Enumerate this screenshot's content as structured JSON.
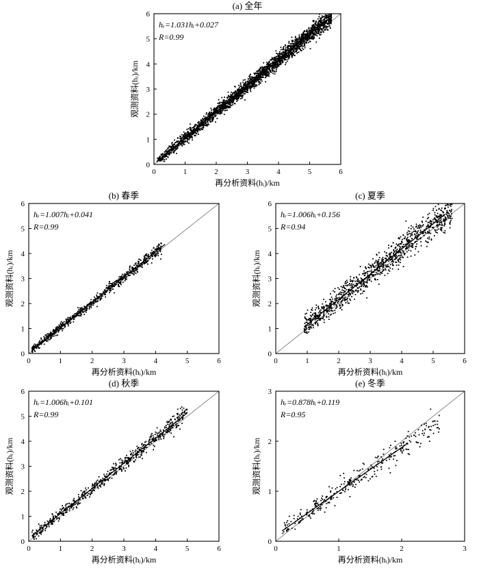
{
  "figure": {
    "xlabel": "再分析资料(hᵢ)/km",
    "ylabel": "观测资料(hᵣ)/km"
  },
  "chart_data": [
    {
      "id": "a",
      "type": "scatter",
      "title": "(a) 全年",
      "xlabel": "再分析资料(hᵢ)/km",
      "ylabel": "观测资料(hᵣ)/km",
      "xlim": [
        0,
        6
      ],
      "ylim": [
        0,
        6
      ],
      "xticks": [
        0,
        1,
        2,
        3,
        4,
        5,
        6
      ],
      "yticks": [
        0,
        1,
        2,
        3,
        4,
        5,
        6
      ],
      "regression": {
        "slope": 1.031,
        "intercept": 0.027,
        "x_range": [
          0.1,
          5.5
        ]
      },
      "equation": "hᵣ=1.031hᵢ+0.027",
      "r_label": "R=0.99",
      "reference_line": "1:1",
      "point_cloud": {
        "n": 2600,
        "x_range": [
          0.1,
          5.7
        ],
        "spread": 0.18,
        "density": "high"
      }
    },
    {
      "id": "b",
      "type": "scatter",
      "title": "(b) 春季",
      "xlabel": "再分析资料(hᵢ)/km",
      "ylabel": "观测资料(hᵣ)/km",
      "xlim": [
        0,
        6
      ],
      "ylim": [
        0,
        6
      ],
      "xticks": [
        0,
        1,
        2,
        3,
        4,
        5,
        6
      ],
      "yticks": [
        0,
        1,
        2,
        3,
        4,
        5,
        6
      ],
      "regression": {
        "slope": 1.007,
        "intercept": 0.041,
        "x_range": [
          0.1,
          4.3
        ]
      },
      "equation": "hᵣ=1.007hᵢ+0.041",
      "r_label": "R=0.99",
      "reference_line": "1:1",
      "point_cloud": {
        "n": 700,
        "x_range": [
          0.1,
          4.2
        ],
        "spread": 0.13
      }
    },
    {
      "id": "c",
      "type": "scatter",
      "title": "(c) 夏季",
      "xlabel": "再分析资料(hᵢ)/km",
      "ylabel": "观测资料(hᵣ)/km",
      "xlim": [
        0,
        6
      ],
      "ylim": [
        0,
        6
      ],
      "xticks": [
        0,
        1,
        2,
        3,
        4,
        5,
        6
      ],
      "yticks": [
        0,
        1,
        2,
        3,
        4,
        5,
        6
      ],
      "regression": {
        "slope": 1.006,
        "intercept": 0.156,
        "x_range": [
          0.9,
          5.4
        ]
      },
      "equation": "hᵣ=1.006hᵢ+0.156",
      "r_label": "R=0.94",
      "reference_line": "1:1",
      "point_cloud": {
        "n": 1100,
        "x_range": [
          0.9,
          5.6
        ],
        "spread": 0.32
      }
    },
    {
      "id": "d",
      "type": "scatter",
      "title": "(d) 秋季",
      "xlabel": "再分析资料(hᵢ)/km",
      "ylabel": "观测资料(hᵣ)/km",
      "xlim": [
        0,
        6
      ],
      "ylim": [
        0,
        6
      ],
      "xticks": [
        0,
        1,
        2,
        3,
        4,
        5,
        6
      ],
      "yticks": [
        0,
        1,
        2,
        3,
        4,
        5,
        6
      ],
      "regression": {
        "slope": 1.006,
        "intercept": 0.101,
        "x_range": [
          0.1,
          5.0
        ]
      },
      "equation": "hᵣ=1.006hᵢ+0.101",
      "r_label": "R=0.99",
      "reference_line": "1:1",
      "point_cloud": {
        "n": 650,
        "x_range": [
          0.1,
          5.0
        ],
        "spread": 0.18
      }
    },
    {
      "id": "e",
      "type": "scatter",
      "title": "(e) 冬季",
      "xlabel": "再分析资料(hᵢ)/km",
      "ylabel": "观测资料(hᵣ)/km",
      "xlim": [
        0,
        3
      ],
      "ylim": [
        0,
        3
      ],
      "xticks": [
        0,
        1,
        2,
        3
      ],
      "yticks": [
        0,
        1,
        2,
        3
      ],
      "regression": {
        "slope": 0.878,
        "intercept": 0.119,
        "x_range": [
          0.1,
          2.1
        ]
      },
      "equation": "hᵣ=0.878hᵢ+0.119",
      "r_label": "R=0.95",
      "reference_line": "1:1",
      "point_cloud": {
        "n": 320,
        "x_range": [
          0.1,
          2.6
        ],
        "spread": 0.12
      }
    }
  ]
}
